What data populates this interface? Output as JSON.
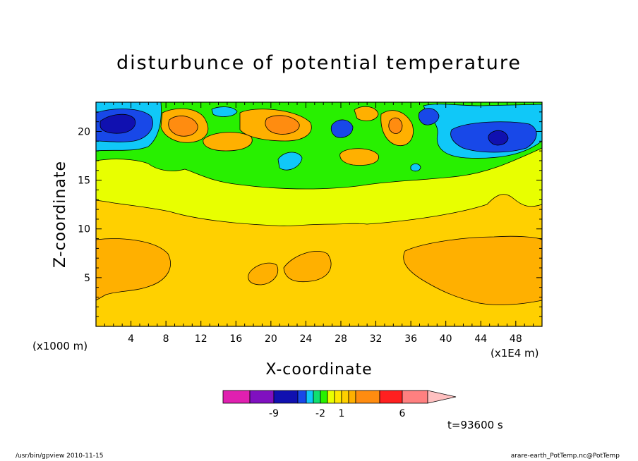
{
  "chart_data": {
    "type": "heatmap",
    "title": "disturbunce of potential temperature",
    "xlabel": "X-coordinate",
    "ylabel": "Z-coordinate",
    "x_unit_note": "(x1000 m)",
    "x_scale_note": "(x1E4 m)",
    "time_label": "t=93600 s",
    "xlim": [
      0,
      51
    ],
    "ylim": [
      0,
      23
    ],
    "x_ticks": [
      "4",
      "8",
      "12",
      "16",
      "20",
      "24",
      "28",
      "32",
      "36",
      "40",
      "44",
      "48"
    ],
    "y_ticks": [
      "5",
      "10",
      "15",
      "20"
    ],
    "colorbar": {
      "levels": [
        -12,
        -10,
        -8,
        -6,
        -4,
        -3,
        -2,
        -1,
        0,
        1,
        2,
        3,
        4,
        6,
        8,
        10
      ],
      "colors": [
        "#e020b0",
        "#8010c0",
        "#1010b0",
        "#1848e8",
        "#10c8f8",
        "#10e070",
        "#28f000",
        "#e8ff00",
        "#ffe800",
        "#ffd000",
        "#ffb000",
        "#ff8c10",
        "#ff2020",
        "#ff8080",
        "#ffc0c0"
      ],
      "tick_labels": [
        "-9",
        "-2",
        "1",
        "6"
      ]
    },
    "field_description_levels": {
      "background": 1,
      "upper_layer": 0,
      "anomalies": [
        {
          "x": 4,
          "z": 20.8,
          "value": -6
        },
        {
          "x": 10,
          "z": 20.5,
          "value": 6
        },
        {
          "x": 21,
          "z": 20.5,
          "value": 6
        },
        {
          "x": 28,
          "z": 20,
          "value": -4
        },
        {
          "x": 34,
          "z": 20.5,
          "value": 4
        },
        {
          "x": 38,
          "z": 21.3,
          "value": -6
        },
        {
          "x": 46,
          "z": 19.5,
          "value": -8
        },
        {
          "x": 4,
          "z": 6,
          "value": 3
        },
        {
          "x": 19,
          "z": 5.5,
          "value": 3
        },
        {
          "x": 24,
          "z": 6,
          "value": 3
        },
        {
          "x": 44,
          "z": 6,
          "value": 3
        }
      ]
    }
  },
  "footer": {
    "left": "/usr/bin/gpview   2010-11-15",
    "right": "arare-earth_PotTemp.nc@PotTemp"
  }
}
